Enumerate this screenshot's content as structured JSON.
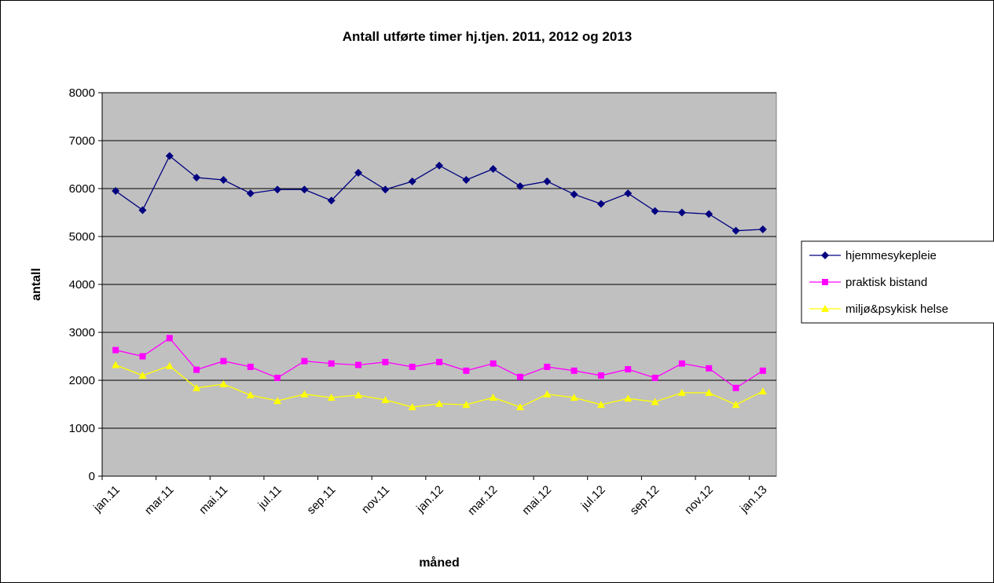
{
  "chart_data": {
    "type": "line",
    "title": "Antall utførte timer hj.tjen. 2011, 2012 og 2013",
    "x_label": "måned",
    "y_label": "antall",
    "categories": [
      "jan.11",
      null,
      "mar.11",
      null,
      "mai.11",
      null,
      "jul.11",
      null,
      "sep.11",
      null,
      "nov.11",
      null,
      "jan.12",
      null,
      "mar.12",
      null,
      "mai.12",
      null,
      "jul.12",
      null,
      "sep.12",
      null,
      "nov.12",
      null,
      "jan.13"
    ],
    "series": [
      {
        "name": "hjemmesykepleie",
        "color": "#000080",
        "marker": "diamond",
        "values": [
          5950,
          5550,
          6680,
          6230,
          6180,
          5900,
          5980,
          5980,
          5750,
          6330,
          5980,
          6150,
          6480,
          6180,
          6410,
          6050,
          6150,
          5880,
          5680,
          5900,
          5530,
          5500,
          5470,
          5120,
          5150
        ]
      },
      {
        "name": "praktisk bistand",
        "color": "#ff00ff",
        "marker": "square",
        "values": [
          2630,
          2500,
          2880,
          2220,
          2400,
          2280,
          2050,
          2400,
          2350,
          2320,
          2380,
          2280,
          2380,
          2200,
          2350,
          2070,
          2280,
          2200,
          2100,
          2230,
          2050,
          2350,
          2250,
          1840,
          2200
        ]
      },
      {
        "name": "miljø&psykisk helse",
        "color": "#ffff00",
        "marker": "triangle",
        "values": [
          2320,
          2100,
          2300,
          1840,
          1920,
          1690,
          1570,
          1710,
          1640,
          1690,
          1590,
          1440,
          1510,
          1490,
          1640,
          1440,
          1710,
          1640,
          1490,
          1620,
          1550,
          1740,
          1740,
          1490,
          1770
        ]
      }
    ],
    "ylim": [
      0,
      8000
    ],
    "yticks": [
      0,
      1000,
      2000,
      3000,
      4000,
      5000,
      6000,
      7000,
      8000
    ],
    "grid": true,
    "legend": "right",
    "plot_background": "#c0c0c0"
  }
}
